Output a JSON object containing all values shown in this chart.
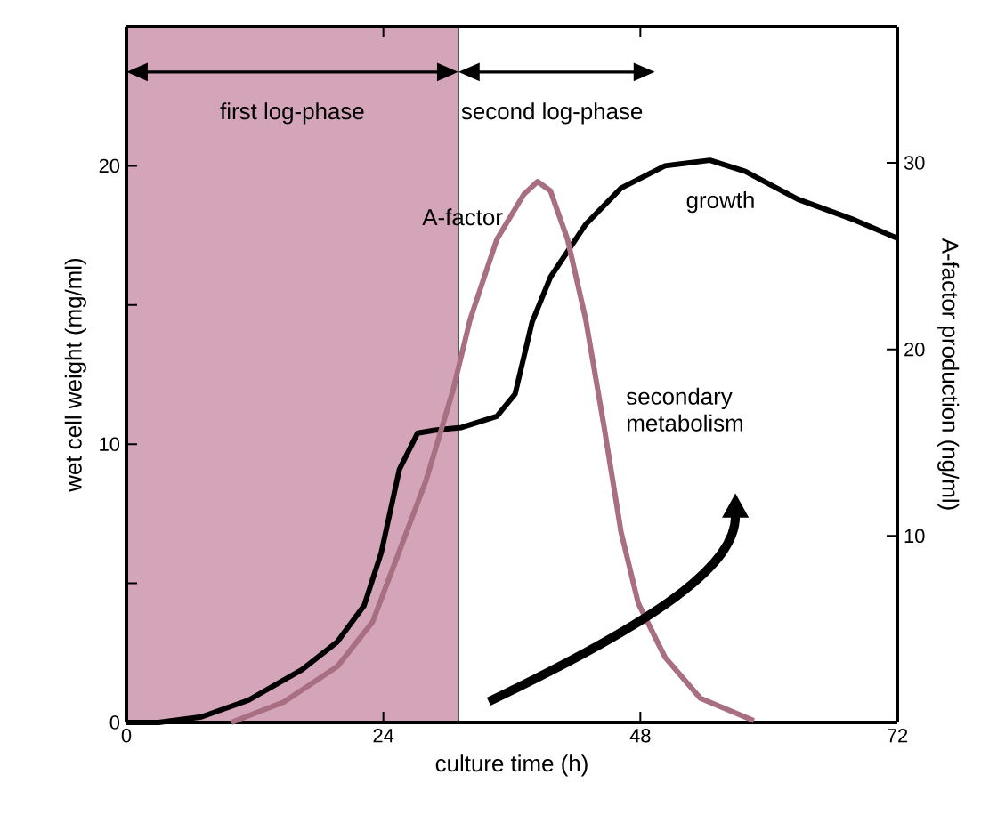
{
  "chart_data": {
    "type": "line",
    "xlabel": "culture time (h)",
    "ylabel": "wet cell weight (mg/ml)",
    "y2label": "A-factor production (ng/ml)",
    "xlim": [
      0,
      72
    ],
    "xticks": [
      0,
      24,
      48,
      72
    ],
    "ylim": [
      0,
      25
    ],
    "yticks": [
      0,
      {
        "value": 5,
        "label": null
      },
      10,
      {
        "value": 15,
        "label": null
      },
      20
    ],
    "y2lim": [
      0,
      37.3
    ],
    "y2ticks": [
      10,
      20,
      30
    ],
    "series": [
      {
        "name": "growth",
        "color": "#000000",
        "x": [
          0,
          3,
          7,
          11.4,
          16.4,
          19.7,
          22.2,
          23.8,
          25.5,
          27.2,
          28.8,
          31.3,
          34.6,
          36.3,
          37.9,
          39.6,
          42.9,
          46.2,
          50.3,
          54.5,
          57.8,
          62.7,
          67.7,
          72
        ],
        "values": [
          0,
          0,
          0.2,
          0.8,
          1.9,
          2.9,
          4.2,
          6.1,
          9.1,
          10.4,
          10.5,
          10.6,
          11,
          11.8,
          14.4,
          16,
          17.9,
          19.2,
          20,
          20.2,
          19.8,
          18.8,
          18.1,
          17.4
        ]
      },
      {
        "name": "A-factor",
        "color": "#a86e82",
        "axis": "y2",
        "x": [
          9.8,
          14.7,
          19.7,
          23,
          25.5,
          28,
          30.5,
          32.1,
          34.6,
          37.1,
          38.4,
          39.6,
          41.2,
          42.9,
          44.6,
          46.2,
          47.8,
          50.3,
          53.6,
          58.6
        ],
        "values": [
          0,
          1.1,
          3,
          5.4,
          9.2,
          13,
          17.8,
          21.6,
          25.9,
          28.3,
          29,
          28.5,
          25.9,
          21.6,
          15.9,
          10.2,
          6.4,
          3.5,
          1.3,
          0.1
        ]
      }
    ],
    "bands": [
      {
        "axis": "x",
        "from": 0,
        "to": 31,
        "label": "first log-phase",
        "color": "#d4a5b8"
      }
    ],
    "ref_lines": [
      {
        "axis": "x",
        "value": 31,
        "color": "#000000"
      }
    ],
    "annotations": [
      "second log-phase",
      "secondary metabolism"
    ],
    "line_style": "solid",
    "marker": "none",
    "grid": false
  }
}
